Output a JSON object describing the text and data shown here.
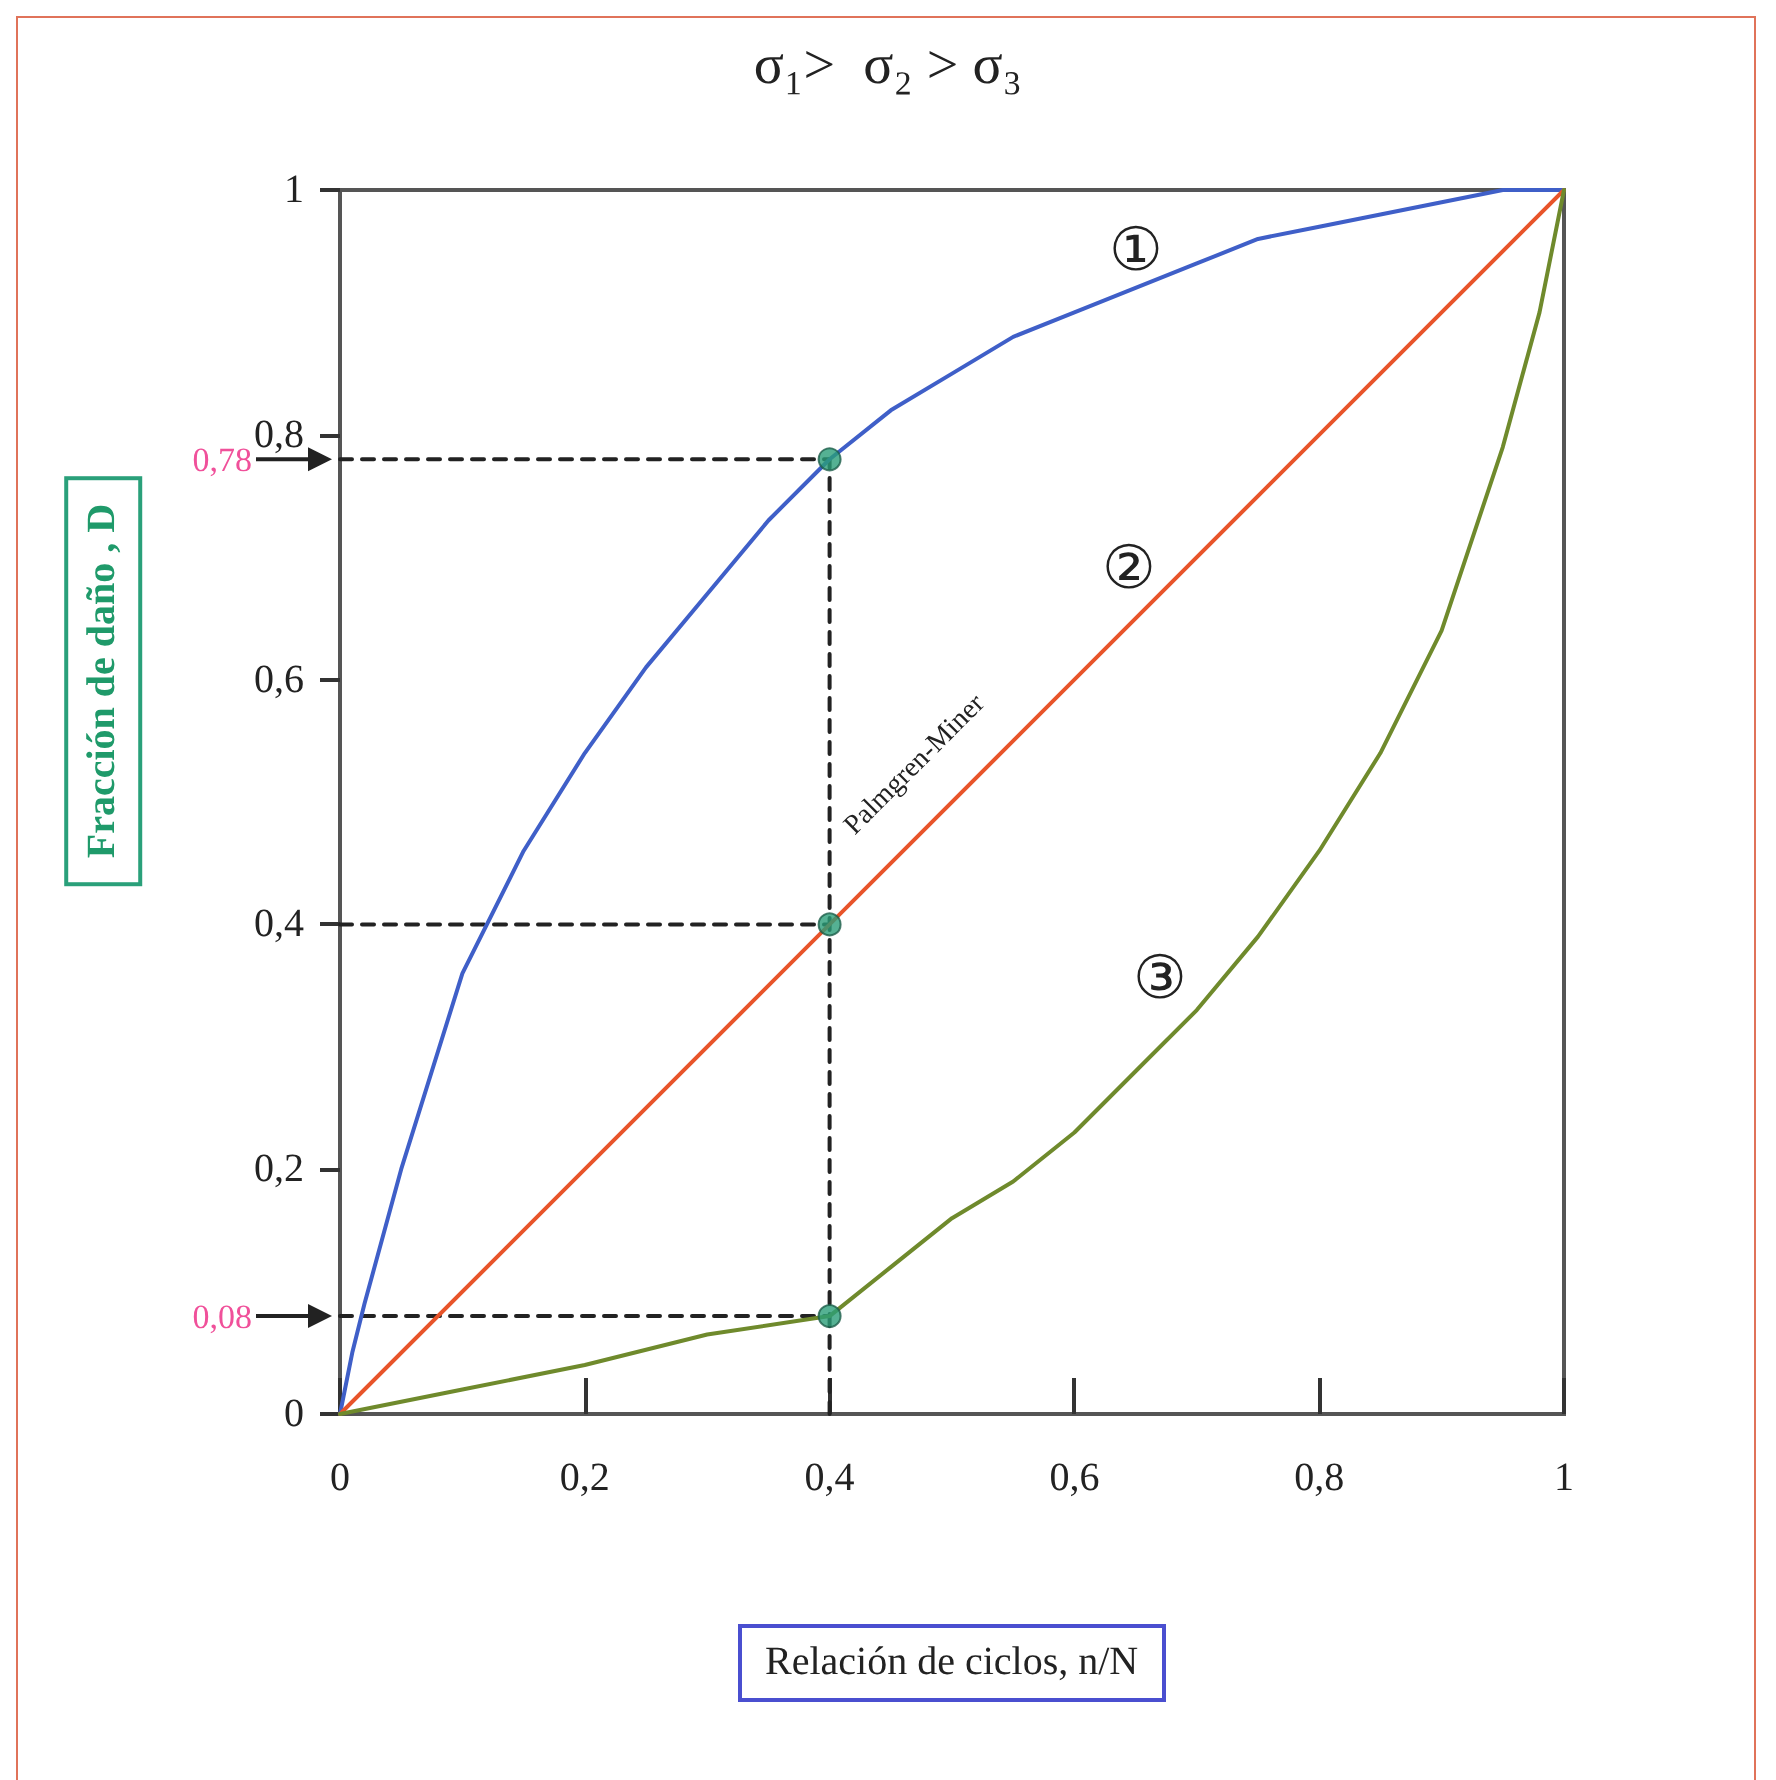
{
  "chart_data": {
    "type": "line",
    "title": "σ₁>  σ₂ > σ₃",
    "xlabel": "Relación de ciclos,  n/N",
    "ylabel": "Fracción de daño ,  D",
    "xlim": [
      0,
      1
    ],
    "ylim": [
      0,
      1
    ],
    "xticks": [
      0,
      {
        "value": 0.2,
        "label": "0,2"
      },
      {
        "value": 0.4,
        "label": "0,4"
      },
      {
        "value": 0.6,
        "label": "0,6"
      },
      {
        "value": 0.8,
        "label": "0,8"
      },
      1
    ],
    "yticks": [
      0,
      {
        "value": 0.2,
        "label": "0,2"
      },
      {
        "value": 0.4,
        "label": "0,4"
      },
      {
        "value": 0.6,
        "label": "0,6"
      },
      {
        "value": 0.8,
        "label": "0,8"
      },
      1
    ],
    "series": [
      {
        "color": "#3f5fc8",
        "x": [
          0,
          0.01,
          0.02,
          0.05,
          0.1,
          0.15,
          0.2,
          0.25,
          0.3,
          0.35,
          0.4,
          0.45,
          0.5,
          0.55,
          0.6,
          0.65,
          0.7,
          0.75,
          0.8,
          0.85,
          0.9,
          0.95,
          1
        ],
        "values": [
          0,
          0.05,
          0.09,
          0.2,
          0.36,
          0.46,
          0.54,
          0.61,
          0.67,
          0.73,
          0.78,
          0.82,
          0.85,
          0.88,
          0.9,
          0.92,
          0.94,
          0.96,
          0.97,
          0.98,
          0.99,
          1,
          1
        ]
      },
      {
        "color": "#e8542a",
        "x": [
          0,
          1
        ],
        "values": [
          0,
          1
        ]
      },
      {
        "color": "#6f8a2c",
        "x": [
          0,
          0.1,
          0.2,
          0.3,
          0.4,
          0.45,
          0.5,
          0.55,
          0.6,
          0.65,
          0.7,
          0.75,
          0.8,
          0.85,
          0.9,
          0.95,
          0.98,
          1
        ],
        "values": [
          0,
          0.02,
          0.04,
          0.065,
          0.08,
          0.12,
          0.16,
          0.19,
          0.23,
          0.28,
          0.33,
          0.39,
          0.46,
          0.54,
          0.64,
          0.79,
          0.9,
          1
        ]
      },
      {
        "color": "#222222",
        "line_style": "dashed",
        "x": [
          0,
          0.4
        ],
        "values": [
          0.78,
          0.78
        ]
      },
      {
        "color": "#222222",
        "line_style": "dashed",
        "x": [
          0,
          0.4
        ],
        "values": [
          0.4,
          0.4
        ]
      },
      {
        "color": "#222222",
        "line_style": "dashed",
        "x": [
          0,
          0.4
        ],
        "values": [
          0.08,
          0.08
        ]
      },
      {
        "color": "#222222",
        "line_style": "dashed",
        "x": [
          0.4,
          0.4
        ],
        "values": [
          0,
          0.78
        ]
      },
      {
        "type": "scatter",
        "color": "#2a9d78",
        "marker": "circle",
        "x": [
          0.4,
          0.4,
          0.4
        ],
        "values": [
          0.78,
          0.4,
          0.08
        ]
      }
    ],
    "annotations": [
      "①",
      "Palmgren-Miner",
      "②",
      "③",
      {
        "text": "0,78",
        "x": 0,
        "y": 0.78
      },
      {
        "text": "0,08",
        "x": 0,
        "y": 0.08
      }
    ]
  }
}
